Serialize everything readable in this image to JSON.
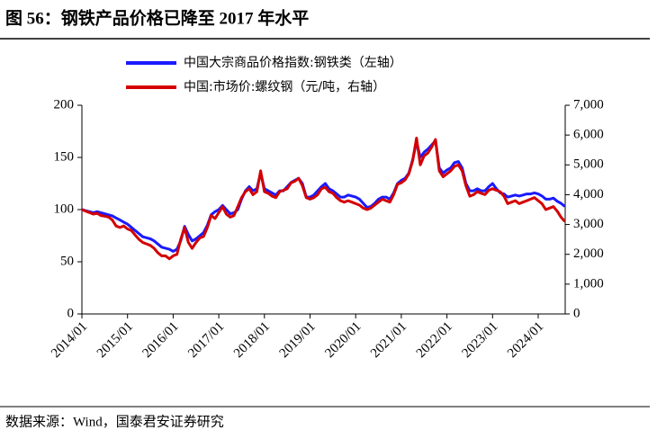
{
  "chart_data": {
    "type": "line",
    "title": "图 56：钢铁产品价格已降至 2017 年水平",
    "source": "数据来源：Wind，国泰君安证券研究",
    "x": [
      "2014/01",
      "2014/02",
      "2014/03",
      "2014/04",
      "2014/05",
      "2014/06",
      "2014/07",
      "2014/08",
      "2014/09",
      "2014/10",
      "2014/11",
      "2014/12",
      "2015/01",
      "2015/02",
      "2015/03",
      "2015/04",
      "2015/05",
      "2015/06",
      "2015/07",
      "2015/08",
      "2015/09",
      "2015/10",
      "2015/11",
      "2015/12",
      "2016/01",
      "2016/02",
      "2016/03",
      "2016/04",
      "2016/05",
      "2016/06",
      "2016/07",
      "2016/08",
      "2016/09",
      "2016/10",
      "2016/11",
      "2016/12",
      "2017/01",
      "2017/02",
      "2017/03",
      "2017/04",
      "2017/05",
      "2017/06",
      "2017/07",
      "2017/08",
      "2017/09",
      "2017/10",
      "2017/11",
      "2017/12",
      "2018/01",
      "2018/02",
      "2018/03",
      "2018/04",
      "2018/05",
      "2018/06",
      "2018/07",
      "2018/08",
      "2018/09",
      "2018/10",
      "2018/11",
      "2018/12",
      "2019/01",
      "2019/02",
      "2019/03",
      "2019/04",
      "2019/05",
      "2019/06",
      "2019/07",
      "2019/08",
      "2019/09",
      "2019/10",
      "2019/11",
      "2019/12",
      "2020/01",
      "2020/02",
      "2020/03",
      "2020/04",
      "2020/05",
      "2020/06",
      "2020/07",
      "2020/08",
      "2020/09",
      "2020/10",
      "2020/11",
      "2020/12",
      "2021/01",
      "2021/02",
      "2021/03",
      "2021/04",
      "2021/05",
      "2021/06",
      "2021/07",
      "2021/08",
      "2021/09",
      "2021/10",
      "2021/11",
      "2021/12",
      "2022/01",
      "2022/02",
      "2022/03",
      "2022/04",
      "2022/05",
      "2022/06",
      "2022/07",
      "2022/08",
      "2022/09",
      "2022/10",
      "2022/11",
      "2022/12",
      "2023/01",
      "2023/02",
      "2023/03",
      "2023/04",
      "2023/05",
      "2023/06",
      "2023/07",
      "2023/08",
      "2023/09",
      "2023/10",
      "2023/11",
      "2023/12",
      "2024/01",
      "2024/02",
      "2024/03",
      "2024/04",
      "2024/05",
      "2024/06",
      "2024/07",
      "2024/08"
    ],
    "xticks": [
      "2014/01",
      "2015/01",
      "2016/01",
      "2017/01",
      "2018/01",
      "2019/01",
      "2020/01",
      "2021/01",
      "2022/01",
      "2023/01",
      "2024/01"
    ],
    "series": [
      {
        "name": "中国大宗商品价格指数:钢铁类（左轴）",
        "color": "#1a1aff",
        "axis": "y",
        "values": [
          100,
          99,
          98,
          97,
          98,
          97,
          96,
          95,
          94,
          92,
          90,
          88,
          86,
          83,
          80,
          77,
          74,
          73,
          72,
          70,
          67,
          64,
          63,
          62,
          60,
          62,
          70,
          84,
          76,
          70,
          72,
          75,
          78,
          85,
          95,
          98,
          100,
          104,
          100,
          96,
          97,
          100,
          110,
          118,
          122,
          118,
          120,
          135,
          120,
          118,
          116,
          114,
          118,
          118,
          122,
          126,
          128,
          130,
          125,
          112,
          112,
          114,
          118,
          122,
          125,
          120,
          118,
          115,
          112,
          112,
          114,
          113,
          112,
          110,
          106,
          102,
          103,
          106,
          110,
          112,
          112,
          110,
          116,
          125,
          128,
          130,
          135,
          148,
          165,
          150,
          155,
          158,
          162,
          166,
          140,
          135,
          138,
          140,
          145,
          146,
          140,
          125,
          118,
          118,
          120,
          118,
          118,
          122,
          125,
          120,
          116,
          115,
          112,
          113,
          114,
          113,
          114,
          115,
          115,
          116,
          115,
          113,
          110,
          110,
          111,
          108,
          106,
          103
        ]
      },
      {
        "name": "中国:市场价:螺纹钢（元/吨，右轴）",
        "color": "#d40000",
        "axis": "y2",
        "values": [
          3500,
          3450,
          3400,
          3350,
          3380,
          3300,
          3280,
          3250,
          3150,
          2950,
          2900,
          2950,
          2850,
          2800,
          2650,
          2500,
          2400,
          2350,
          2300,
          2200,
          2050,
          1950,
          1950,
          1850,
          1950,
          2000,
          2500,
          2900,
          2400,
          2200,
          2400,
          2550,
          2600,
          2900,
          3300,
          3200,
          3400,
          3600,
          3350,
          3250,
          3300,
          3600,
          3900,
          4100,
          4200,
          4000,
          4100,
          4800,
          4100,
          4050,
          3950,
          3900,
          4100,
          4150,
          4200,
          4400,
          4450,
          4550,
          4300,
          3900,
          3850,
          3900,
          4000,
          4200,
          4250,
          4100,
          4050,
          3900,
          3800,
          3750,
          3800,
          3750,
          3700,
          3650,
          3550,
          3500,
          3550,
          3650,
          3750,
          3850,
          3800,
          3750,
          4000,
          4350,
          4400,
          4500,
          4700,
          5150,
          5900,
          5000,
          5300,
          5400,
          5600,
          5850,
          4800,
          4600,
          4700,
          4800,
          4950,
          5000,
          4800,
          4300,
          3950,
          4000,
          4100,
          4050,
          4000,
          4150,
          4200,
          4150,
          4100,
          3950,
          3700,
          3750,
          3800,
          3700,
          3750,
          3800,
          3850,
          3900,
          3800,
          3700,
          3500,
          3550,
          3600,
          3450,
          3250,
          3100
        ]
      }
    ],
    "ylim": [
      0,
      200
    ],
    "yticks": [
      0,
      50,
      100,
      150,
      200
    ],
    "y2lim": [
      0,
      7000
    ],
    "y2ticks": [
      0,
      {
        "value": 1000,
        "label": "1,000"
      },
      {
        "value": 2000,
        "label": "2,000"
      },
      {
        "value": 3000,
        "label": "3,000"
      },
      {
        "value": 4000,
        "label": "4,000"
      },
      {
        "value": 5000,
        "label": "5,000"
      },
      {
        "value": 6000,
        "label": "6,000"
      },
      {
        "value": 7000,
        "label": "7,000"
      }
    ],
    "grid": false,
    "legend": "top"
  }
}
